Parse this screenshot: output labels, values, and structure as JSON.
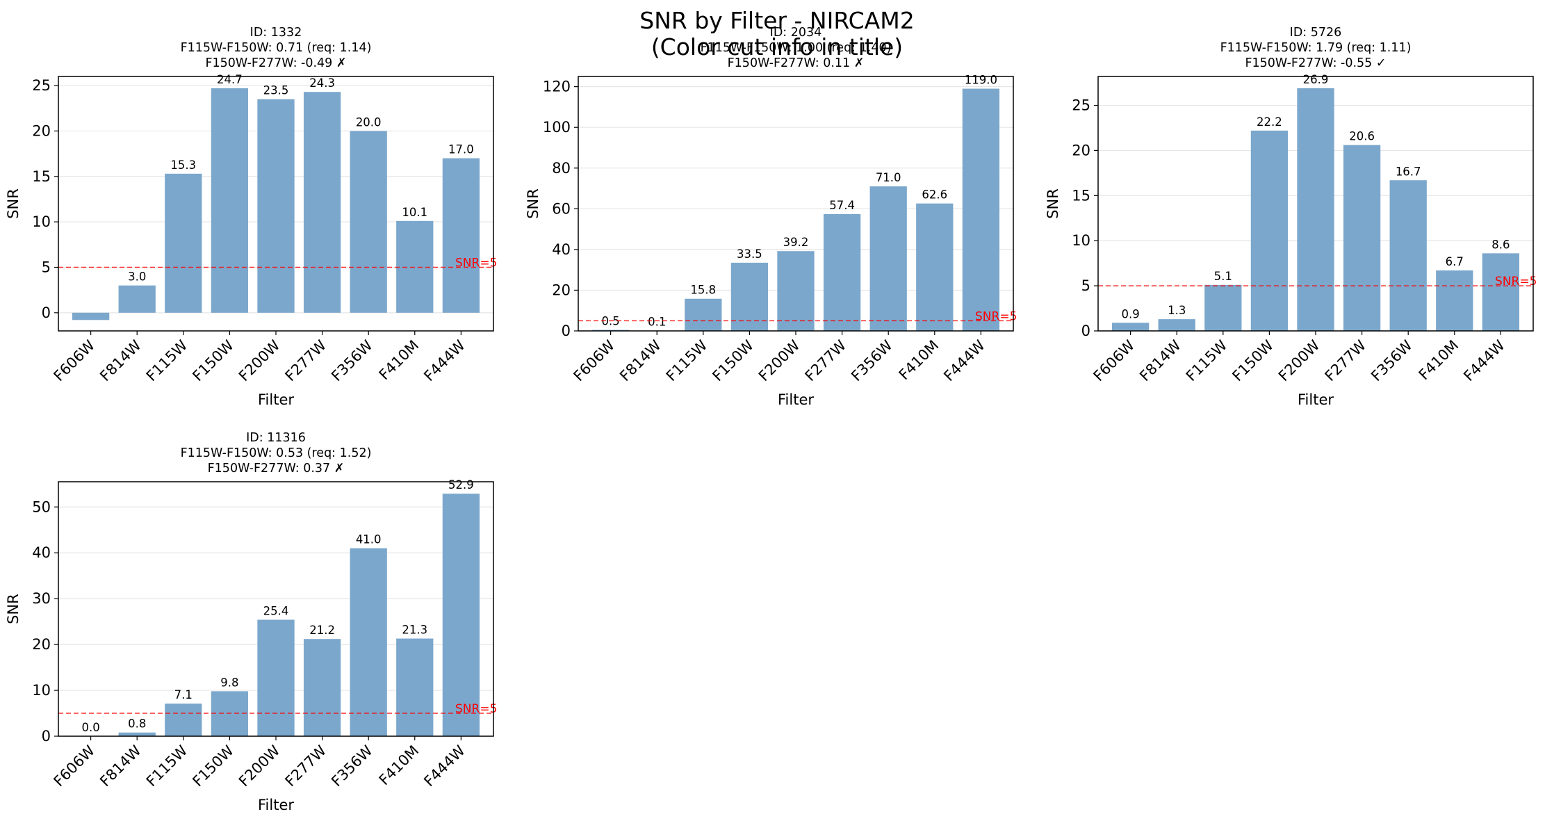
{
  "figure": {
    "suptitle_line1": "SNR by Filter - NIRCAM2",
    "suptitle_line2": "(Color cut info in title)"
  },
  "chart_data": [
    {
      "type": "bar",
      "title": [
        "ID: 1332",
        "F115W-F150W: 0.71 (req: 1.14)",
        "F150W-F277W: -0.49 ✗"
      ],
      "xlabel": "Filter",
      "ylabel": "SNR",
      "categories": [
        "F606W",
        "F814W",
        "F115W",
        "F150W",
        "F200W",
        "F277W",
        "F356W",
        "F410M",
        "F444W"
      ],
      "values": [
        -0.8,
        3.0,
        15.3,
        24.7,
        23.5,
        24.3,
        20.0,
        10.1,
        17.0
      ],
      "value_labels": [
        "",
        "3.0",
        "15.3",
        "24.7",
        "23.5",
        "24.3",
        "20.0",
        "10.1",
        "17.0"
      ],
      "ylim": [
        -2,
        26
      ],
      "yticks": [
        0,
        5,
        10,
        15,
        20,
        25
      ],
      "threshold": {
        "value": 5,
        "label": "SNR=5"
      },
      "grid": "y"
    },
    {
      "type": "bar",
      "title": [
        "ID: 2034",
        "F115W-F150W: 1.00 (req: 1.40)",
        "F150W-F277W: 0.11 ✗"
      ],
      "xlabel": "Filter",
      "ylabel": "SNR",
      "categories": [
        "F606W",
        "F814W",
        "F115W",
        "F150W",
        "F200W",
        "F277W",
        "F356W",
        "F410M",
        "F444W"
      ],
      "values": [
        0.5,
        0.1,
        15.8,
        33.5,
        39.2,
        57.4,
        71.0,
        62.6,
        119.0
      ],
      "value_labels": [
        "0.5",
        "0.1",
        "15.8",
        "33.5",
        "39.2",
        "57.4",
        "71.0",
        "62.6",
        "119.0"
      ],
      "ylim": [
        0,
        125
      ],
      "yticks": [
        0,
        20,
        40,
        60,
        80,
        100,
        120
      ],
      "threshold": {
        "value": 5,
        "label": "SNR=5"
      },
      "grid": "y"
    },
    {
      "type": "bar",
      "title": [
        "ID: 5726",
        "F115W-F150W: 1.79 (req: 1.11)",
        "F150W-F277W: -0.55 ✓"
      ],
      "xlabel": "Filter",
      "ylabel": "SNR",
      "categories": [
        "F606W",
        "F814W",
        "F115W",
        "F150W",
        "F200W",
        "F277W",
        "F356W",
        "F410M",
        "F444W"
      ],
      "values": [
        0.9,
        1.3,
        5.1,
        22.2,
        26.9,
        20.6,
        16.7,
        6.7,
        8.6
      ],
      "value_labels": [
        "0.9",
        "1.3",
        "5.1",
        "22.2",
        "26.9",
        "20.6",
        "16.7",
        "6.7",
        "8.6"
      ],
      "ylim": [
        0,
        28.2
      ],
      "yticks": [
        0,
        5,
        10,
        15,
        20,
        25
      ],
      "threshold": {
        "value": 5,
        "label": "SNR=5"
      },
      "grid": "y"
    },
    {
      "type": "bar",
      "title": [
        "ID: 11316",
        "F115W-F150W: 0.53 (req: 1.52)",
        "F150W-F277W: 0.37 ✗"
      ],
      "xlabel": "Filter",
      "ylabel": "SNR",
      "categories": [
        "F606W",
        "F814W",
        "F115W",
        "F150W",
        "F200W",
        "F277W",
        "F356W",
        "F410M",
        "F444W"
      ],
      "values": [
        0.0,
        0.8,
        7.1,
        9.8,
        25.4,
        21.2,
        41.0,
        21.3,
        52.9
      ],
      "value_labels": [
        "0.0",
        "0.8",
        "7.1",
        "9.8",
        "25.4",
        "21.2",
        "41.0",
        "21.3",
        "52.9"
      ],
      "ylim": [
        0,
        55.5
      ],
      "yticks": [
        0,
        10,
        20,
        30,
        40,
        50
      ],
      "threshold": {
        "value": 5,
        "label": "SNR=5"
      },
      "grid": "y"
    }
  ],
  "colors": {
    "bar": "#7ba7cc",
    "threshold": "#ff0000",
    "grid": "#e6e6e6",
    "axis": "#000000"
  }
}
